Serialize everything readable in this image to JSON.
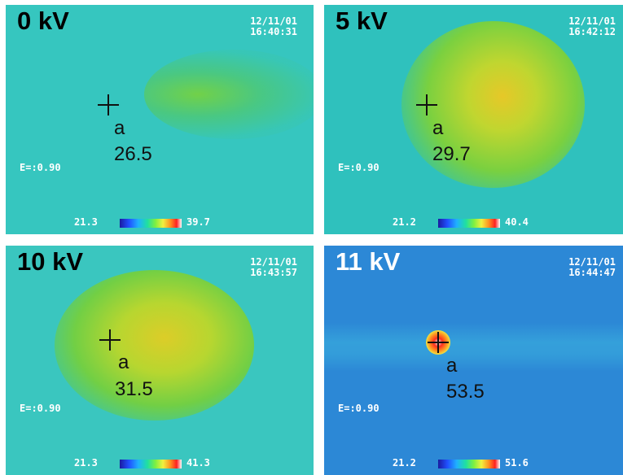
{
  "panels": [
    {
      "label": "0 kV",
      "date": "12/11/01",
      "time": "16:40:31",
      "emissivity": "E=:0.90",
      "point_label": "a",
      "point_value": "26.5",
      "scale_min": "21.3",
      "scale_max": "39.7"
    },
    {
      "label": "5 kV",
      "date": "12/11/01",
      "time": "16:42:12",
      "emissivity": "E=:0.90",
      "point_label": "a",
      "point_value": "29.7",
      "scale_min": "21.2",
      "scale_max": "40.4"
    },
    {
      "label": "10 kV",
      "date": "12/11/01",
      "time": "16:43:57",
      "emissivity": "E=:0.90",
      "point_label": "a",
      "point_value": "31.5",
      "scale_min": "21.3",
      "scale_max": "41.3"
    },
    {
      "label": "11 kV",
      "date": "12/11/01",
      "time": "16:44:47",
      "emissivity": "E=:0.90",
      "point_label": "a",
      "point_value": "53.5",
      "scale_min": "21.2",
      "scale_max": "51.6"
    }
  ],
  "colors": {
    "background_cyan": "#36c6bf",
    "background_blue": "#2c88d6",
    "hot_yellow": "#e0d040",
    "hotspot_red": "#ff3020"
  }
}
